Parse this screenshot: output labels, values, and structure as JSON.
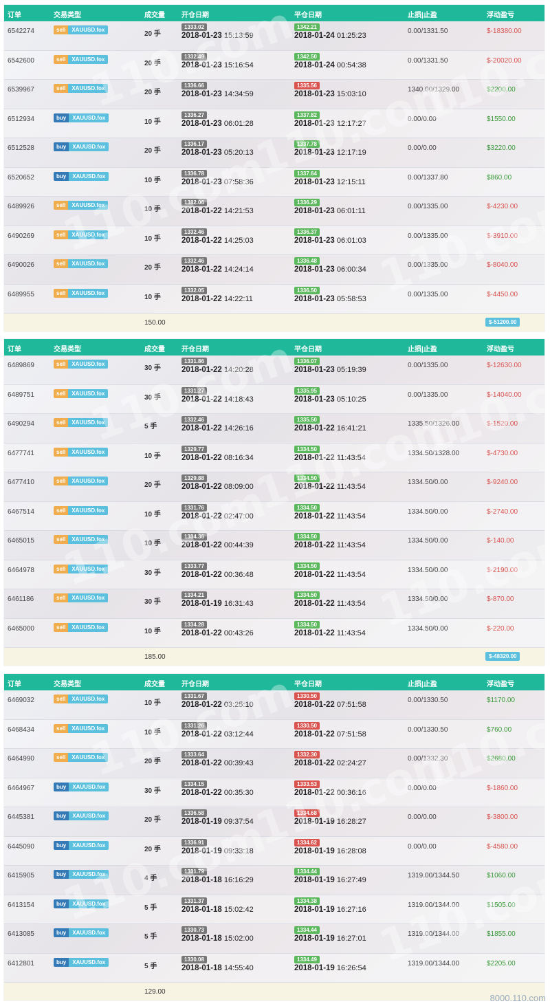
{
  "headers": [
    "订单",
    "交易类型",
    "成交量",
    "开仓日期",
    "平仓日期",
    "止损|止盈",
    "浮动盈亏"
  ],
  "symbol": "XAUUSD.fox",
  "watermark": "110.com",
  "panels": [
    {
      "rows": [
        {
          "order": "6542274",
          "dir": "sell",
          "vol": "20 手",
          "open_price": "1333.02",
          "open_date": "2018-01-23",
          "open_time": "15:13:59",
          "close_price": "1342.21",
          "close_color": "green",
          "close_date": "2018-01-24",
          "close_time": "01:25:23",
          "sltp": "0.00/1331.50",
          "pnl": "$-18380.00",
          "pnl_sign": "neg"
        },
        {
          "order": "6542600",
          "dir": "sell",
          "vol": "20 手",
          "open_price": "1332.49",
          "open_date": "2018-01-23",
          "open_time": "15:16:54",
          "close_price": "1342.50",
          "close_color": "green",
          "close_date": "2018-01-24",
          "close_time": "00:54:38",
          "sltp": "0.00/1331.50",
          "pnl": "$-20020.00",
          "pnl_sign": "neg"
        },
        {
          "order": "6539967",
          "dir": "sell",
          "vol": "20 手",
          "open_price": "1336.66",
          "open_date": "2018-01-23",
          "open_time": "14:34:59",
          "close_price": "1335.56",
          "close_color": "red",
          "close_date": "2018-01-23",
          "close_time": "15:03:10",
          "sltp": "1340.00/1329.00",
          "pnl": "$2200.00",
          "pnl_sign": "pos"
        },
        {
          "order": "6512934",
          "dir": "buy",
          "vol": "10 手",
          "open_price": "1336.27",
          "open_date": "2018-01-23",
          "open_time": "06:01:28",
          "close_price": "1337.82",
          "close_color": "green",
          "close_date": "2018-01-23",
          "close_time": "12:17:27",
          "sltp": "0.00/0.00",
          "pnl": "$1550.00",
          "pnl_sign": "pos"
        },
        {
          "order": "6512528",
          "dir": "buy",
          "vol": "20 手",
          "open_price": "1336.17",
          "open_date": "2018-01-23",
          "open_time": "05:20:13",
          "close_price": "1337.78",
          "close_color": "green",
          "close_date": "2018-01-23",
          "close_time": "12:17:19",
          "sltp": "0.00/0.00",
          "pnl": "$3220.00",
          "pnl_sign": "pos"
        },
        {
          "order": "6520652",
          "dir": "buy",
          "vol": "10 手",
          "open_price": "1336.78",
          "open_date": "2018-01-23",
          "open_time": "07:58:36",
          "close_price": "1337.64",
          "close_color": "green",
          "close_date": "2018-01-23",
          "close_time": "12:15:11",
          "sltp": "0.00/1337.80",
          "pnl": "$860.00",
          "pnl_sign": "pos"
        },
        {
          "order": "6489926",
          "dir": "sell",
          "vol": "10 手",
          "open_price": "1332.06",
          "open_date": "2018-01-22",
          "open_time": "14:21:53",
          "close_price": "1336.29",
          "close_color": "green",
          "close_date": "2018-01-23",
          "close_time": "06:01:11",
          "sltp": "0.00/1335.00",
          "pnl": "$-4230.00",
          "pnl_sign": "neg"
        },
        {
          "order": "6490269",
          "dir": "sell",
          "vol": "10 手",
          "open_price": "1332.46",
          "open_date": "2018-01-22",
          "open_time": "14:25:03",
          "close_price": "1336.37",
          "close_color": "green",
          "close_date": "2018-01-23",
          "close_time": "06:01:03",
          "sltp": "0.00/1335.00",
          "pnl": "$-3910.00",
          "pnl_sign": "neg"
        },
        {
          "order": "6490026",
          "dir": "sell",
          "vol": "20 手",
          "open_price": "1332.46",
          "open_date": "2018-01-22",
          "open_time": "14:24:14",
          "close_price": "1336.48",
          "close_color": "green",
          "close_date": "2018-01-23",
          "close_time": "06:00:34",
          "sltp": "0.00/1335.00",
          "pnl": "$-8040.00",
          "pnl_sign": "neg"
        },
        {
          "order": "6489955",
          "dir": "sell",
          "vol": "10 手",
          "open_price": "1332.05",
          "open_date": "2018-01-22",
          "open_time": "14:22:11",
          "close_price": "1336.50",
          "close_color": "green",
          "close_date": "2018-01-23",
          "close_time": "05:58:53",
          "sltp": "0.00/1335.00",
          "pnl": "$-4450.00",
          "pnl_sign": "neg"
        }
      ],
      "total_volume": "150.00",
      "total_pnl": "$-51200.00"
    },
    {
      "rows": [
        {
          "order": "6489869",
          "dir": "sell",
          "vol": "30 手",
          "open_price": "1331.86",
          "open_date": "2018-01-22",
          "open_time": "14:20:28",
          "close_price": "1336.07",
          "close_color": "green",
          "close_date": "2018-01-23",
          "close_time": "05:19:39",
          "sltp": "0.00/1335.00",
          "pnl": "$-12630.00",
          "pnl_sign": "neg"
        },
        {
          "order": "6489751",
          "dir": "sell",
          "vol": "30 手",
          "open_price": "1331.27",
          "open_date": "2018-01-22",
          "open_time": "14:18:43",
          "close_price": "1335.95",
          "close_color": "green",
          "close_date": "2018-01-23",
          "close_time": "05:10:25",
          "sltp": "0.00/1335.00",
          "pnl": "$-14040.00",
          "pnl_sign": "neg"
        },
        {
          "order": "6490294",
          "dir": "sell",
          "vol": "5 手",
          "open_price": "1332.46",
          "open_date": "2018-01-22",
          "open_time": "14:26:16",
          "close_price": "1335.50",
          "close_color": "green",
          "close_date": "2018-01-22",
          "close_time": "16:41:21",
          "sltp": "1335.50/1326.00",
          "pnl": "$-1520.00",
          "pnl_sign": "neg"
        },
        {
          "order": "6477741",
          "dir": "sell",
          "vol": "10 手",
          "open_price": "1329.77",
          "open_date": "2018-01-22",
          "open_time": "08:16:34",
          "close_price": "1334.50",
          "close_color": "green",
          "close_date": "2018-01-22",
          "close_time": "11:43:54",
          "sltp": "1334.50/1328.00",
          "pnl": "$-4730.00",
          "pnl_sign": "neg"
        },
        {
          "order": "6477410",
          "dir": "sell",
          "vol": "20 手",
          "open_price": "1329.88",
          "open_date": "2018-01-22",
          "open_time": "08:09:00",
          "close_price": "1334.50",
          "close_color": "green",
          "close_date": "2018-01-22",
          "close_time": "11:43:54",
          "sltp": "1334.50/0.00",
          "pnl": "$-9240.00",
          "pnl_sign": "neg"
        },
        {
          "order": "6467514",
          "dir": "sell",
          "vol": "10 手",
          "open_price": "1331.76",
          "open_date": "2018-01-22",
          "open_time": "02:47:00",
          "close_price": "1334.50",
          "close_color": "green",
          "close_date": "2018-01-22",
          "close_time": "11:43:54",
          "sltp": "1334.50/0.00",
          "pnl": "$-2740.00",
          "pnl_sign": "neg"
        },
        {
          "order": "6465015",
          "dir": "sell",
          "vol": "10 手",
          "open_price": "1334.36",
          "open_date": "2018-01-22",
          "open_time": "00:44:39",
          "close_price": "1334.50",
          "close_color": "green",
          "close_date": "2018-01-22",
          "close_time": "11:43:54",
          "sltp": "1334.50/0.00",
          "pnl": "$-140.00",
          "pnl_sign": "neg"
        },
        {
          "order": "6464978",
          "dir": "sell",
          "vol": "30 手",
          "open_price": "1333.77",
          "open_date": "2018-01-22",
          "open_time": "00:36:48",
          "close_price": "1334.50",
          "close_color": "green",
          "close_date": "2018-01-22",
          "close_time": "11:43:54",
          "sltp": "1334.50/0.00",
          "pnl": "$-2190.00",
          "pnl_sign": "neg"
        },
        {
          "order": "6461186",
          "dir": "sell",
          "vol": "30 手",
          "open_price": "1334.21",
          "open_date": "2018-01-19",
          "open_time": "16:31:43",
          "close_price": "1334.50",
          "close_color": "green",
          "close_date": "2018-01-22",
          "close_time": "11:43:54",
          "sltp": "1334.50/0.00",
          "pnl": "$-870.00",
          "pnl_sign": "neg"
        },
        {
          "order": "6465000",
          "dir": "sell",
          "vol": "10 手",
          "open_price": "1334.28",
          "open_date": "2018-01-22",
          "open_time": "00:43:26",
          "close_price": "1334.50",
          "close_color": "green",
          "close_date": "2018-01-22",
          "close_time": "11:43:54",
          "sltp": "1334.50/0.00",
          "pnl": "$-220.00",
          "pnl_sign": "neg"
        }
      ],
      "total_volume": "185.00",
      "total_pnl": "$-48320.00"
    },
    {
      "rows": [
        {
          "order": "6469032",
          "dir": "sell",
          "vol": "10 手",
          "open_price": "1331.67",
          "open_date": "2018-01-22",
          "open_time": "03:25:10",
          "close_price": "1330.50",
          "close_color": "red",
          "close_date": "2018-01-22",
          "close_time": "07:51:58",
          "sltp": "0.00/1330.50",
          "pnl": "$1170.00",
          "pnl_sign": "pos"
        },
        {
          "order": "6468434",
          "dir": "sell",
          "vol": "10 手",
          "open_price": "1331.26",
          "open_date": "2018-01-22",
          "open_time": "03:12:44",
          "close_price": "1330.50",
          "close_color": "red",
          "close_date": "2018-01-22",
          "close_time": "07:51:58",
          "sltp": "0.00/1330.50",
          "pnl": "$760.00",
          "pnl_sign": "pos"
        },
        {
          "order": "6464990",
          "dir": "sell",
          "vol": "20 手",
          "open_price": "1333.64",
          "open_date": "2018-01-22",
          "open_time": "00:39:43",
          "close_price": "1332.30",
          "close_color": "red",
          "close_date": "2018-01-22",
          "close_time": "02:24:27",
          "sltp": "0.00/1332.30",
          "pnl": "$2680.00",
          "pnl_sign": "pos"
        },
        {
          "order": "6464967",
          "dir": "buy",
          "vol": "30 手",
          "open_price": "1334.15",
          "open_date": "2018-01-22",
          "open_time": "00:35:30",
          "close_price": "1333.53",
          "close_color": "red",
          "close_date": "2018-01-22",
          "close_time": "00:36:16",
          "sltp": "0.00/0.00",
          "pnl": "$-1860.00",
          "pnl_sign": "neg"
        },
        {
          "order": "6445381",
          "dir": "buy",
          "vol": "20 手",
          "open_price": "1336.58",
          "open_date": "2018-01-19",
          "open_time": "09:37:54",
          "close_price": "1334.68",
          "close_color": "red",
          "close_date": "2018-01-19",
          "close_time": "16:28:27",
          "sltp": "0.00/0.00",
          "pnl": "$-3800.00",
          "pnl_sign": "neg"
        },
        {
          "order": "6445090",
          "dir": "buy",
          "vol": "20 手",
          "open_price": "1336.91",
          "open_date": "2018-01-19",
          "open_time": "09:33:18",
          "close_price": "1334.62",
          "close_color": "red",
          "close_date": "2018-01-19",
          "close_time": "16:28:08",
          "sltp": "0.00/0.00",
          "pnl": "$-4580.00",
          "pnl_sign": "neg"
        },
        {
          "order": "6415905",
          "dir": "buy",
          "vol": "4 手",
          "open_price": "1331.79",
          "open_date": "2018-01-18",
          "open_time": "16:16:29",
          "close_price": "1334.44",
          "close_color": "green",
          "close_date": "2018-01-19",
          "close_time": "16:27:49",
          "sltp": "1319.00/1344.50",
          "pnl": "$1060.00",
          "pnl_sign": "pos"
        },
        {
          "order": "6413154",
          "dir": "buy",
          "vol": "5 手",
          "open_price": "1331.37",
          "open_date": "2018-01-18",
          "open_time": "15:02:42",
          "close_price": "1334.38",
          "close_color": "green",
          "close_date": "2018-01-19",
          "close_time": "16:27:16",
          "sltp": "1319.00/1344.00",
          "pnl": "$1505.00",
          "pnl_sign": "pos"
        },
        {
          "order": "6413085",
          "dir": "buy",
          "vol": "5 手",
          "open_price": "1330.73",
          "open_date": "2018-01-18",
          "open_time": "15:02:00",
          "close_price": "1334.44",
          "close_color": "green",
          "close_date": "2018-01-19",
          "close_time": "16:27:01",
          "sltp": "1319.00/1344.00",
          "pnl": "$1855.00",
          "pnl_sign": "pos"
        },
        {
          "order": "6412801",
          "dir": "buy",
          "vol": "5 手",
          "open_price": "1330.08",
          "open_date": "2018-01-18",
          "open_time": "14:55:40",
          "close_price": "1334.49",
          "close_color": "green",
          "close_date": "2018-01-19",
          "close_time": "16:26:54",
          "sltp": "1319.00/1344.00",
          "pnl": "$2205.00",
          "pnl_sign": "pos"
        }
      ],
      "total_volume": "129.00",
      "total_pnl": ""
    }
  ],
  "corner_text": "8000.110.com"
}
